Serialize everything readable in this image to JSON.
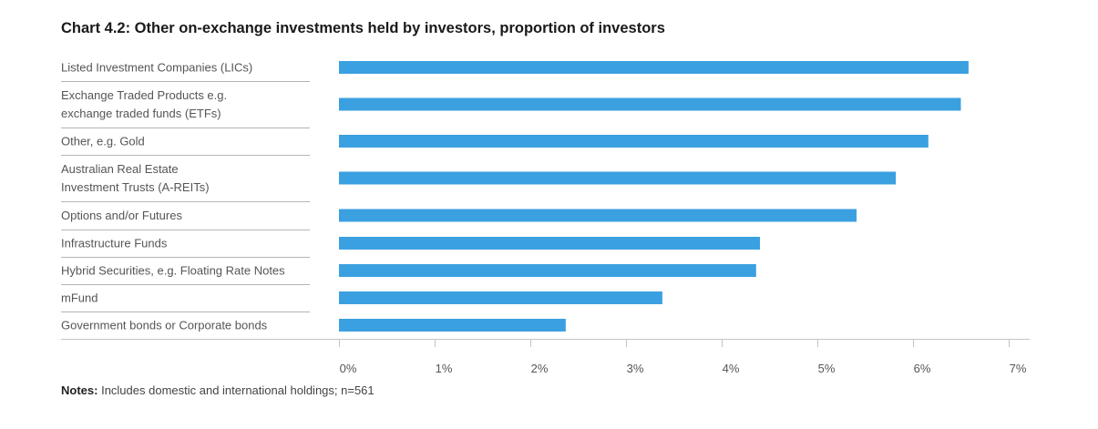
{
  "title": "Chart 4.2: Other on-exchange investments held by investors, proportion of investors",
  "notes": {
    "label": "Notes:",
    "text": "Includes domestic and international holdings; n=561"
  },
  "colors": {
    "bar": "#3ba0e0",
    "separator": "#b5b5b5",
    "axis": "#c4c4c4",
    "text": "#555555"
  },
  "chart_data": {
    "type": "bar",
    "orientation": "horizontal",
    "categories": [
      [
        "Listed Investment Companies (LICs)"
      ],
      [
        "Exchange Traded Products e.g.",
        "exchange traded funds (ETFs)"
      ],
      [
        "Other, e.g. Gold"
      ],
      [
        "Australian Real Estate",
        "Investment Trusts (A-REITs)"
      ],
      [
        "Options and/or Futures"
      ],
      [
        "Infrastructure Funds"
      ],
      [
        "Hybrid Securities, e.g. Floating Rate Notes"
      ],
      [
        "mFund"
      ],
      [
        "Government bonds or Corporate bonds"
      ]
    ],
    "values": [
      6.58,
      6.5,
      6.16,
      5.82,
      5.41,
      4.4,
      4.36,
      3.38,
      2.37
    ],
    "xlim": [
      0,
      7
    ],
    "xticks": [
      "0%",
      "1%",
      "2%",
      "3%",
      "4%",
      "5%",
      "6%",
      "7%"
    ],
    "grid": false,
    "legend": "none"
  }
}
